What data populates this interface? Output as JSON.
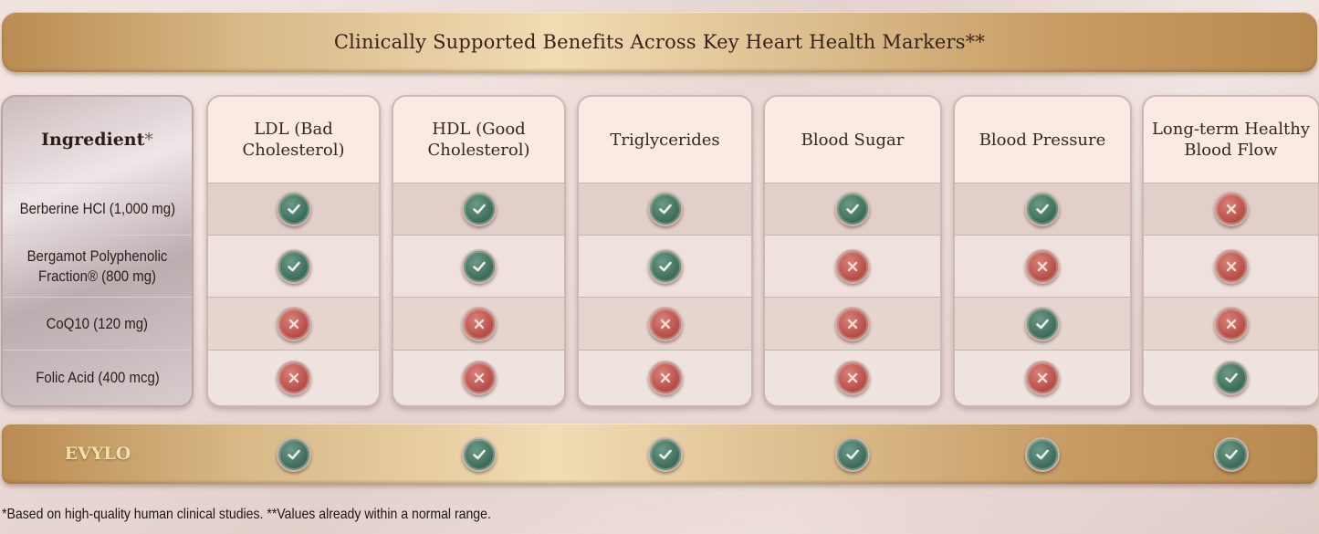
{
  "title": "Clinically Supported Benefits Across Key Heart Health Markers**",
  "ingredient_header": "Ingredient",
  "ingredient_header_mark": "*",
  "columns": [
    "LDL (Bad Cholesterol)",
    "HDL (Good Cholesterol)",
    "Triglycerides",
    "Blood Sugar",
    "Blood Pressure",
    "Long-term Healthy Blood Flow"
  ],
  "rows": [
    {
      "ingredient": "Berberine HCl (1,000 mg)",
      "values": [
        true,
        true,
        true,
        true,
        true,
        false
      ]
    },
    {
      "ingredient": "Bergamot Polyphenolic Fraction® (800 mg)",
      "values": [
        true,
        true,
        true,
        false,
        false,
        false
      ]
    },
    {
      "ingredient": "CoQ10 (120 mg)",
      "values": [
        false,
        false,
        false,
        false,
        true,
        false
      ]
    },
    {
      "ingredient": "Folic Acid (400 mcg)",
      "values": [
        false,
        false,
        false,
        false,
        false,
        true
      ]
    }
  ],
  "product": {
    "name": "EVYLO",
    "values": [
      true,
      true,
      true,
      true,
      true,
      true
    ]
  },
  "footnote": "*Based on high-quality human clinical studies. **Values already within a normal range.",
  "icons": {
    "yes": "check-circle-icon",
    "no": "x-circle-icon"
  },
  "colors": {
    "check": "#3f6f5c",
    "cross": "#b9504a",
    "gold": "#d8b886"
  }
}
